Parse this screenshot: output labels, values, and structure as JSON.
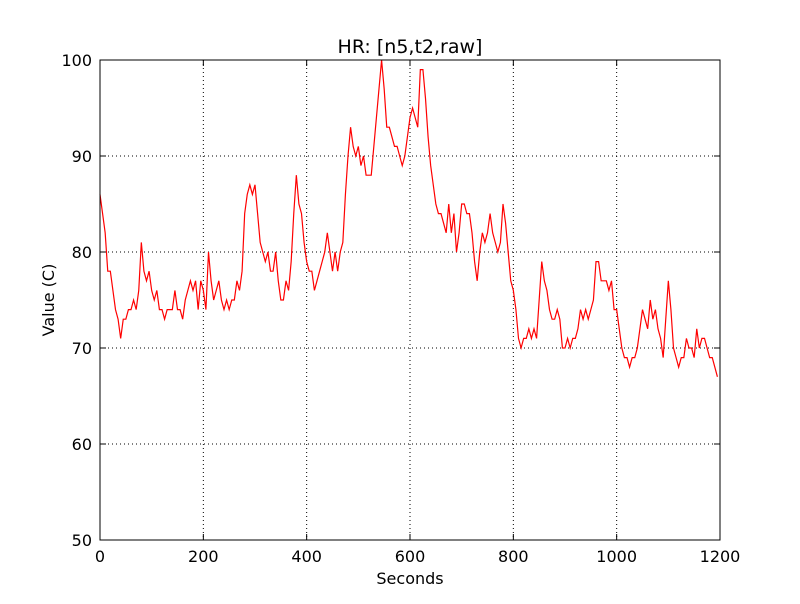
{
  "chart_data": {
    "type": "line",
    "title": "HR: [n5,t2,raw]",
    "x_label": "Seconds",
    "y_label": "Value (C)",
    "x": [
      0,
      5,
      10,
      15,
      20,
      25,
      30,
      35,
      40,
      45,
      50,
      55,
      60,
      65,
      70,
      75,
      80,
      85,
      90,
      95,
      100,
      105,
      110,
      115,
      120,
      125,
      130,
      140,
      145,
      150,
      155,
      160,
      165,
      170,
      175,
      180,
      185,
      190,
      195,
      200,
      205,
      210,
      215,
      220,
      225,
      230,
      235,
      240,
      245,
      250,
      255,
      260,
      265,
      270,
      275,
      280,
      285,
      290,
      295,
      300,
      305,
      310,
      315,
      320,
      325,
      330,
      335,
      340,
      345,
      350,
      355,
      360,
      365,
      370,
      375,
      380,
      385,
      390,
      395,
      400,
      405,
      410,
      415,
      420,
      425,
      430,
      435,
      440,
      445,
      450,
      455,
      460,
      465,
      470,
      475,
      480,
      485,
      490,
      495,
      500,
      505,
      510,
      515,
      520,
      525,
      530,
      535,
      540,
      545,
      550,
      555,
      560,
      565,
      570,
      575,
      580,
      585,
      590,
      595,
      600,
      605,
      610,
      615,
      620,
      625,
      630,
      635,
      640,
      645,
      650,
      655,
      660,
      665,
      670,
      675,
      680,
      685,
      690,
      695,
      700,
      705,
      710,
      715,
      720,
      725,
      730,
      735,
      740,
      745,
      750,
      755,
      760,
      765,
      770,
      775,
      780,
      785,
      790,
      795,
      800,
      805,
      810,
      815,
      820,
      825,
      830,
      835,
      840,
      845,
      850,
      855,
      860,
      865,
      870,
      875,
      880,
      885,
      890,
      895,
      900,
      905,
      910,
      915,
      920,
      925,
      930,
      935,
      940,
      945,
      950,
      955,
      960,
      965,
      970,
      975,
      980,
      985,
      990,
      995,
      1000,
      1005,
      1010,
      1015,
      1020,
      1025,
      1030,
      1035,
      1040,
      1045,
      1050,
      1055,
      1060,
      1065,
      1070,
      1075,
      1080,
      1085,
      1090,
      1095,
      1100,
      1105,
      1110,
      1115,
      1120,
      1125,
      1130,
      1135,
      1140,
      1145,
      1150,
      1155,
      1160,
      1165,
      1170,
      1175,
      1180,
      1185,
      1190,
      1195
    ],
    "series": [
      {
        "name": "HR",
        "color": "#ff0000",
        "values": [
          86,
          84,
          82,
          78,
          78,
          76,
          74,
          73,
          71,
          73,
          73,
          74,
          74,
          75,
          74,
          76,
          81,
          78,
          77,
          78,
          76,
          75,
          76,
          74,
          74,
          73,
          74,
          74,
          76,
          74,
          74,
          73,
          75,
          76,
          77,
          76,
          77,
          74,
          77,
          76,
          74,
          80,
          77,
          75,
          76,
          77,
          75,
          74,
          75,
          74,
          75,
          75,
          77,
          76,
          78,
          84,
          86,
          87,
          86,
          87,
          84,
          81,
          80,
          79,
          80,
          78,
          78,
          80,
          77,
          75,
          75,
          77,
          76,
          79,
          84,
          88,
          85,
          84,
          81,
          79,
          78,
          78,
          76,
          77,
          78,
          79,
          80,
          82,
          80,
          78,
          80,
          78,
          80,
          81,
          86,
          90,
          93,
          91,
          90,
          91,
          89,
          90,
          88,
          88,
          88,
          91,
          94,
          97,
          100,
          97,
          93,
          93,
          92,
          91,
          91,
          90,
          89,
          90,
          92,
          94,
          95,
          94,
          93,
          99,
          99,
          96,
          92,
          89,
          87,
          85,
          84,
          84,
          83,
          82,
          85,
          82,
          84,
          80,
          82,
          85,
          85,
          84,
          84,
          82,
          79,
          77,
          80,
          82,
          81,
          82,
          84,
          82,
          81,
          80,
          81,
          85,
          83,
          80,
          77,
          76,
          74,
          71,
          70,
          71,
          71,
          72,
          71,
          72,
          71,
          75,
          79,
          77,
          76,
          74,
          73,
          73,
          74,
          73,
          70,
          70,
          71,
          70,
          71,
          71,
          72,
          74,
          73,
          74,
          73,
          74,
          75,
          79,
          79,
          77,
          77,
          77,
          76,
          77,
          74,
          74,
          72,
          70,
          69,
          69,
          68,
          69,
          69,
          70,
          72,
          74,
          73,
          72,
          75,
          73,
          74,
          72,
          71,
          69,
          73,
          77,
          74,
          70,
          69,
          68,
          69,
          69,
          71,
          70,
          70,
          69,
          72,
          70,
          71,
          71,
          70,
          69,
          69,
          68,
          67
        ]
      }
    ],
    "xlim": [
      0,
      1200
    ],
    "xticks": [
      0,
      200,
      400,
      600,
      800,
      1000,
      1200
    ],
    "ylim": [
      50,
      100
    ],
    "yticks": [
      50,
      60,
      70,
      80,
      90,
      100
    ],
    "grid": true
  }
}
